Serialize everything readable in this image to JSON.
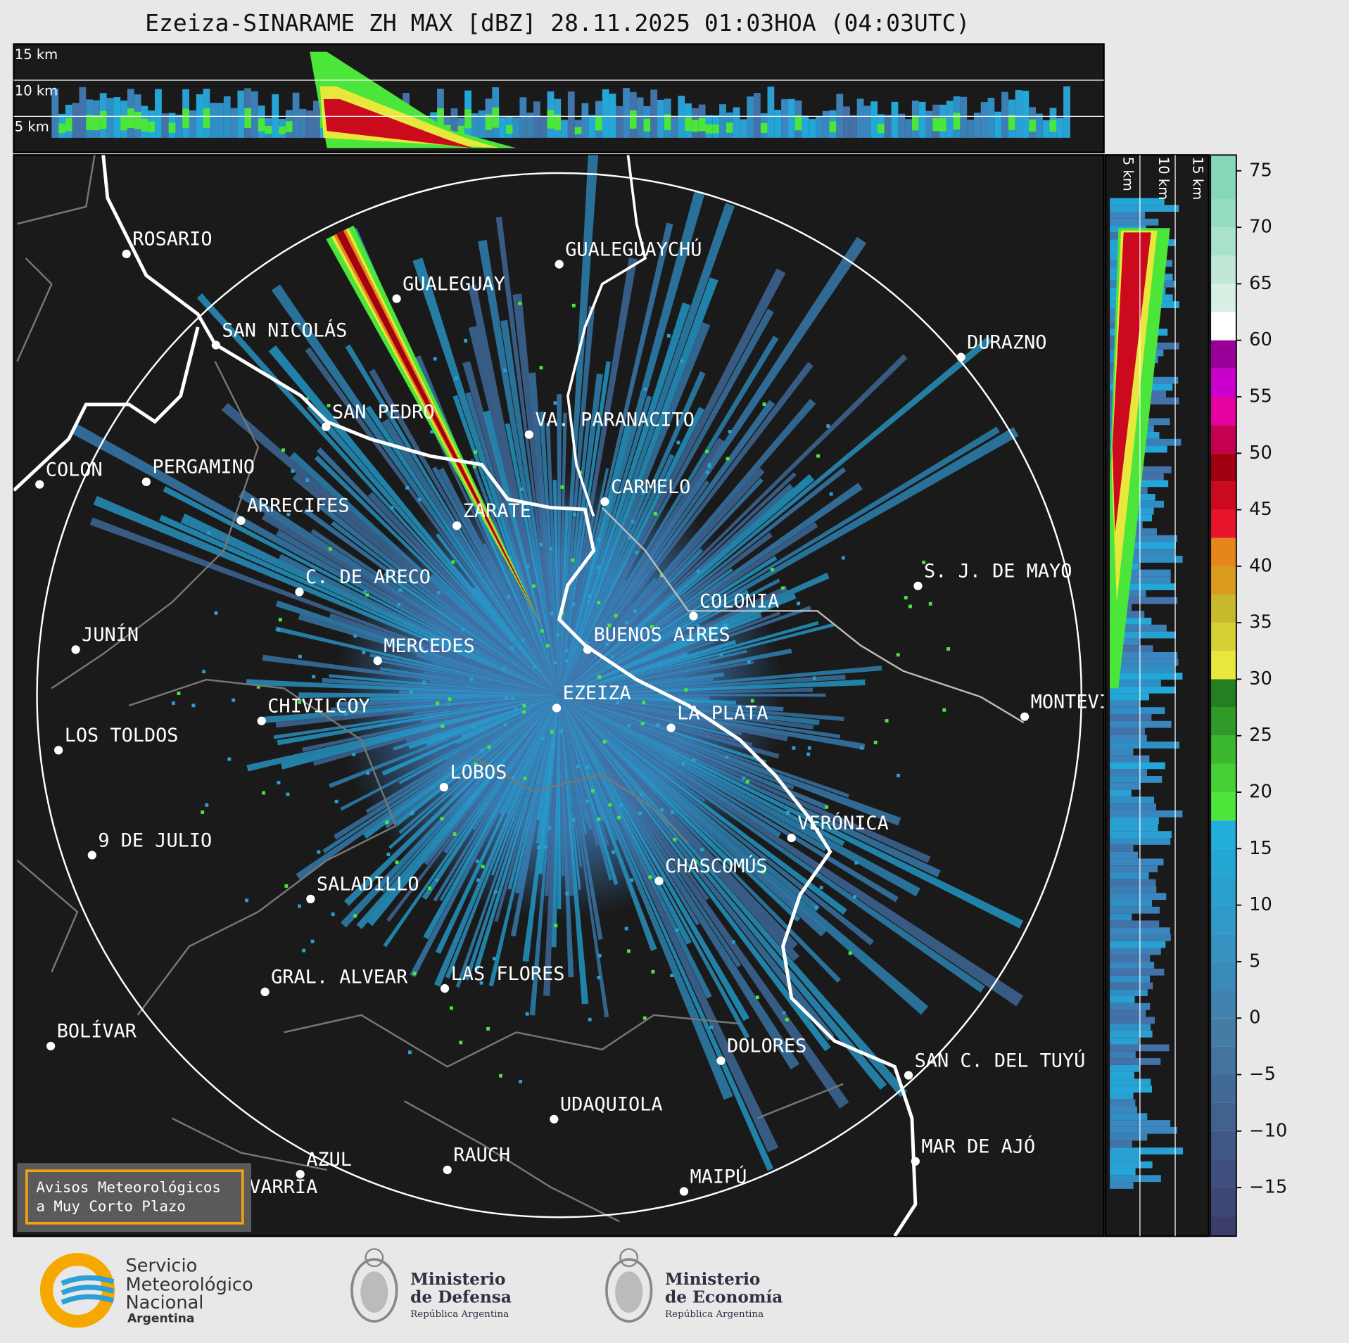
{
  "title": "Ezeiza-SINARAME ZH MAX [dBZ] 28.11.2025 01:03HOA (04:03UTC)",
  "top_panel": {
    "height_labels": [
      "15 km",
      "10 km",
      "5 km"
    ]
  },
  "side_panel": {
    "height_labels": [
      "5 km",
      "10 km",
      "15 km"
    ]
  },
  "cities": [
    "ROSARIO",
    "GUALEGUAYCHÚ",
    "GUALEGUAY",
    "SAN NICOLÁS",
    "DURAZNO",
    "SAN PEDRO",
    "VA. PARANACITO",
    "COLON",
    "PERGAMINO",
    "CARMELO",
    "ARRECIFES",
    "ZARATE",
    "S. J. DE MAYO",
    "C. DE ARECO",
    "COLONIA",
    "JUNÍN",
    "BUENOS AIRES",
    "MERCEDES",
    "MONTEVIDEO",
    "EZEIZA",
    "CHIVILCOY",
    "LA PLATA",
    "LOS TOLDOS",
    "LOBOS",
    "VERÓNICA",
    "9 DE JULIO",
    "CHASCOMÚS",
    "SALADILLO",
    "GRAL. ALVEAR",
    "LAS FLORES",
    "BOLÍVAR",
    "DOLORES",
    "SAN C. DEL TUYÚ",
    "UDAQUIOLA",
    "MAR DE AJÓ",
    "RAUCH",
    "AZUL",
    "OLAVARRÍA",
    "MAIPÚ"
  ],
  "colorbar": {
    "lim": [
      -19.3,
      76.4
    ],
    "ticks": [
      {
        "value": -15,
        "label": "−15"
      },
      {
        "value": -10,
        "label": "−10"
      },
      {
        "value": -5,
        "label": "−5"
      },
      0,
      5,
      10,
      15,
      20,
      25,
      30,
      35,
      40,
      45,
      50,
      55,
      60,
      65,
      70,
      75
    ],
    "segments": [
      {
        "from": -19.3,
        "to": -17.5,
        "color": "#3b3d6a"
      },
      {
        "from": -17.5,
        "to": -15,
        "color": "#3d4674"
      },
      {
        "from": -15,
        "to": -12.5,
        "color": "#3f4f7e"
      },
      {
        "from": -12.5,
        "to": -10,
        "color": "#405886"
      },
      {
        "from": -10,
        "to": -7.5,
        "color": "#41618f"
      },
      {
        "from": -7.5,
        "to": -5,
        "color": "#426a97"
      },
      {
        "from": -5,
        "to": -2.5,
        "color": "#43739f"
      },
      {
        "from": -2.5,
        "to": 0,
        "color": "#447ca6"
      },
      {
        "from": 0,
        "to": 2.5,
        "color": "#4083b0"
      },
      {
        "from": 2.5,
        "to": 5,
        "color": "#3b8bb8"
      },
      {
        "from": 5,
        "to": 7.5,
        "color": "#3692c0"
      },
      {
        "from": 7.5,
        "to": 10,
        "color": "#3099c7"
      },
      {
        "from": 10,
        "to": 12.5,
        "color": "#2aa0ce"
      },
      {
        "from": 12.5,
        "to": 15,
        "color": "#25a7d4"
      },
      {
        "from": 15,
        "to": 17.5,
        "color": "#22aedb"
      },
      {
        "from": 17.5,
        "to": 20,
        "color": "#4ce63a"
      },
      {
        "from": 20,
        "to": 22.5,
        "color": "#47d036"
      },
      {
        "from": 22.5,
        "to": 25,
        "color": "#3cb82f"
      },
      {
        "from": 25,
        "to": 27.5,
        "color": "#2f9a28"
      },
      {
        "from": 27.5,
        "to": 30,
        "color": "#237f22"
      },
      {
        "from": 30,
        "to": 32.5,
        "color": "#e8e83c"
      },
      {
        "from": 32.5,
        "to": 35,
        "color": "#d6d034"
      },
      {
        "from": 35,
        "to": 37.5,
        "color": "#c8b82c"
      },
      {
        "from": 37.5,
        "to": 40,
        "color": "#d99a1e"
      },
      {
        "from": 40,
        "to": 42.5,
        "color": "#e6861a"
      },
      {
        "from": 42.5,
        "to": 45,
        "color": "#e8142c"
      },
      {
        "from": 45,
        "to": 47.5,
        "color": "#cc0a1e"
      },
      {
        "from": 47.5,
        "to": 50,
        "color": "#a00010"
      },
      {
        "from": 50,
        "to": 52.5,
        "color": "#c40050"
      },
      {
        "from": 52.5,
        "to": 55,
        "color": "#e600a0"
      },
      {
        "from": 55,
        "to": 57.5,
        "color": "#cc00cc"
      },
      {
        "from": 57.5,
        "to": 60,
        "color": "#9a0099"
      },
      {
        "from": 60,
        "to": 62.5,
        "color": "#ffffff"
      },
      {
        "from": 62.5,
        "to": 65,
        "color": "#d8f0e4"
      },
      {
        "from": 65,
        "to": 67.5,
        "color": "#bfe8d6"
      },
      {
        "from": 67.5,
        "to": 70,
        "color": "#a8e2cb"
      },
      {
        "from": 70,
        "to": 72.5,
        "color": "#96dcc0"
      },
      {
        "from": 72.5,
        "to": 76.4,
        "color": "#86d6b8"
      }
    ]
  },
  "warning_box": {
    "lines": [
      "Avisos Meteorológicos",
      "a Muy Corto Plazo"
    ]
  },
  "footer": {
    "smn": [
      "Servicio",
      "Meteorológico",
      "Nacional",
      "Argentina"
    ],
    "defensa": [
      "Ministerio",
      "de Defensa",
      "República Argentina"
    ],
    "economia": [
      "Ministerio",
      "de Economía",
      "República Argentina"
    ]
  }
}
